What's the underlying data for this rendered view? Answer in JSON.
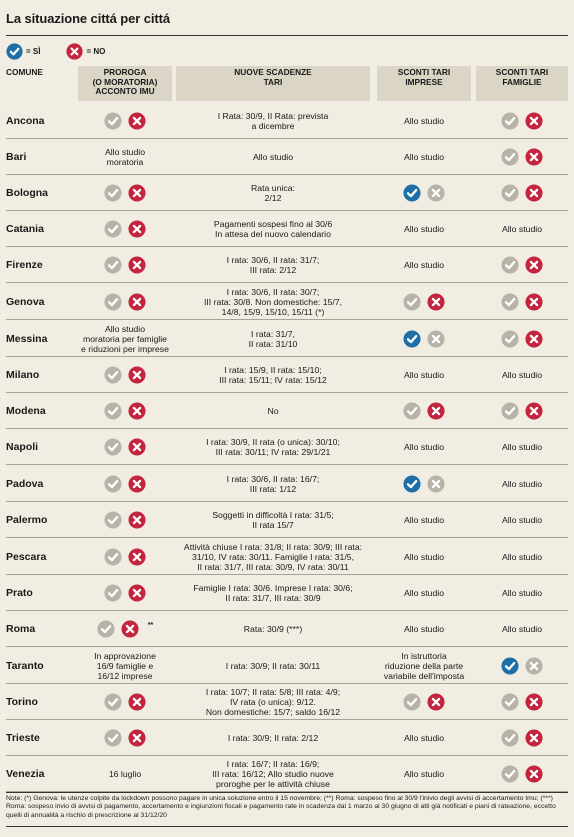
{
  "title": "La situazione cittá per cittá",
  "legend": [
    {
      "icon": "check-icon",
      "label": "= SÌ"
    },
    {
      "icon": "cross-icon",
      "label": "= NO"
    }
  ],
  "colors": {
    "check": "#1d6fa8",
    "cross": "#c3253e",
    "grey": "#b8b3a8",
    "header_bg": "#dbd5c6",
    "background": "#f2ede2"
  },
  "columns": [
    "COMUNE",
    "PROROGA\n(O MORATORIA)\nACCONTO IMU",
    "NUOVE SCADENZE\nTARI",
    "SCONTI TARI\nIMPRESE",
    "SCONTI TARI\nFAMIGLIE"
  ],
  "rows": [
    {
      "city": "Ancona",
      "imu": {
        "icons": [
          "grey-check-icon",
          "cross-icon"
        ]
      },
      "tari": "I Rata: 30/9, II Rata: prevista\na dicembre",
      "imprese": {
        "text": "Allo studio"
      },
      "famiglie": {
        "icons": [
          "grey-check-icon",
          "cross-icon"
        ]
      }
    },
    {
      "city": "Bari",
      "imu": {
        "text": "Allo studio\nmoratoria"
      },
      "tari": "Allo studio",
      "imprese": {
        "text": "Allo studio"
      },
      "famiglie": {
        "icons": [
          "grey-check-icon",
          "cross-icon"
        ]
      }
    },
    {
      "city": "Bologna",
      "imu": {
        "icons": [
          "grey-check-icon",
          "cross-icon"
        ]
      },
      "tari": "Rata unica:\n2/12",
      "imprese": {
        "icons": [
          "check-icon",
          "grey-cross-icon"
        ]
      },
      "famiglie": {
        "icons": [
          "grey-check-icon",
          "cross-icon"
        ]
      }
    },
    {
      "city": "Catania",
      "imu": {
        "icons": [
          "grey-check-icon",
          "cross-icon"
        ]
      },
      "tari": "Pagamenti sospesi fino al 30/6\nIn attesa del nuovo calendario",
      "imprese": {
        "text": "Allo studio"
      },
      "famiglie": {
        "text": "Allo studio"
      }
    },
    {
      "city": "Firenze",
      "imu": {
        "icons": [
          "grey-check-icon",
          "cross-icon"
        ]
      },
      "tari": "I rata: 30/6, II rata: 31/7;\nIII rata: 2/12",
      "imprese": {
        "text": "Allo studio"
      },
      "famiglie": {
        "icons": [
          "grey-check-icon",
          "cross-icon"
        ]
      }
    },
    {
      "city": "Genova",
      "imu": {
        "icons": [
          "grey-check-icon",
          "cross-icon"
        ]
      },
      "tari": "I rata: 30/6, II rata: 30/7;\nIII rata: 30/8. Non domestiche: 15/7,\n14/8, 15/9, 15/10, 15/11 (*)",
      "imprese": {
        "icons": [
          "grey-check-icon",
          "cross-icon"
        ]
      },
      "famiglie": {
        "icons": [
          "grey-check-icon",
          "cross-icon"
        ]
      }
    },
    {
      "city": "Messina",
      "imu": {
        "text": "Allo studio\nmoratoria per famiglie\ne riduzioni per imprese"
      },
      "tari": "I rata: 31/7,\nII rata: 31/10",
      "imprese": {
        "icons": [
          "check-icon",
          "grey-cross-icon"
        ]
      },
      "famiglie": {
        "icons": [
          "grey-check-icon",
          "cross-icon"
        ]
      }
    },
    {
      "city": "Milano",
      "imu": {
        "icons": [
          "grey-check-icon",
          "cross-icon"
        ]
      },
      "tari": "I rata: 15/9, II rata: 15/10;\nIII rata: 15/11; IV rata: 15/12",
      "imprese": {
        "text": "Allo studio"
      },
      "famiglie": {
        "text": "Allo studio"
      }
    },
    {
      "city": "Modena",
      "imu": {
        "icons": [
          "grey-check-icon",
          "cross-icon"
        ]
      },
      "tari": "No",
      "imprese": {
        "icons": [
          "grey-check-icon",
          "cross-icon"
        ]
      },
      "famiglie": {
        "icons": [
          "grey-check-icon",
          "cross-icon"
        ]
      }
    },
    {
      "city": "Napoli",
      "imu": {
        "icons": [
          "grey-check-icon",
          "cross-icon"
        ]
      },
      "tari": "I rata: 30/9, II rata (o unica): 30/10;\nIII rata: 30/11; IV rata: 29/1/21",
      "imprese": {
        "text": "Allo studio"
      },
      "famiglie": {
        "text": "Allo studio"
      }
    },
    {
      "city": "Padova",
      "imu": {
        "icons": [
          "grey-check-icon",
          "cross-icon"
        ]
      },
      "tari": "I rata: 30/6, II rata: 16/7;\nIII rata: 1/12",
      "imprese": {
        "icons": [
          "check-icon",
          "grey-cross-icon"
        ]
      },
      "famiglie": {
        "text": "Allo studio"
      }
    },
    {
      "city": "Palermo",
      "imu": {
        "icons": [
          "grey-check-icon",
          "cross-icon"
        ]
      },
      "tari": "Soggetti in difficoltà I rata: 31/5;\nII rata 15/7",
      "imprese": {
        "text": "Allo studio"
      },
      "famiglie": {
        "text": "Allo studio"
      }
    },
    {
      "city": "Pescara",
      "imu": {
        "icons": [
          "grey-check-icon",
          "cross-icon"
        ]
      },
      "tari": "Attività chiuse I rata: 31/8; II rata: 30/9; III rata:\n31/10, IV rata: 30/11. Famiglie I rata: 31/5,\nII rata: 31/7, III rata: 30/9, IV rata: 30/11",
      "imprese": {
        "text": "Allo studio"
      },
      "famiglie": {
        "text": "Allo studio"
      }
    },
    {
      "city": "Prato",
      "imu": {
        "icons": [
          "grey-check-icon",
          "cross-icon"
        ]
      },
      "tari": "Famiglie I rata: 30/6. Imprese I rata: 30/6;\nII rata: 31/7, III rata: 30/9",
      "imprese": {
        "text": "Allo studio"
      },
      "famiglie": {
        "text": "Allo studio"
      }
    },
    {
      "city": "Roma",
      "imu": {
        "icons": [
          "grey-check-icon",
          "cross-icon"
        ],
        "note": "**"
      },
      "tari": "Rata: 30/9 (***)",
      "imprese": {
        "text": "Allo studio"
      },
      "famiglie": {
        "text": "Allo studio"
      }
    },
    {
      "city": "Taranto",
      "imu": {
        "text": "In approvazione\n16/9 famiglie e\n16/12 imprese"
      },
      "tari": "I rata: 30/9; II rata: 30/11",
      "imprese": {
        "text": "In istruttoria\nriduzione della parte\nvariabile dell'imposta"
      },
      "famiglie": {
        "icons": [
          "check-icon",
          "grey-cross-icon"
        ]
      }
    },
    {
      "city": "Torino",
      "imu": {
        "icons": [
          "grey-check-icon",
          "cross-icon"
        ]
      },
      "tari": "I rata: 10/7; II rata: 5/8; III rata: 4/9;\nIV rata (o unica): 9/12.\nNon domestiche: 15/7; saldo 16/12",
      "imprese": {
        "icons": [
          "grey-check-icon",
          "cross-icon"
        ]
      },
      "famiglie": {
        "icons": [
          "grey-check-icon",
          "cross-icon"
        ]
      }
    },
    {
      "city": "Trieste",
      "imu": {
        "icons": [
          "grey-check-icon",
          "cross-icon"
        ]
      },
      "tari": "I rata: 30/9; II rata: 2/12",
      "imprese": {
        "text": "Allo studio"
      },
      "famiglie": {
        "icons": [
          "grey-check-icon",
          "cross-icon"
        ]
      }
    },
    {
      "city": "Venezia",
      "imu": {
        "text": "16 luglio"
      },
      "tari": "I rata: 16/7; II rata: 16/9;\nIII rata: 16/12; Allo studio nuove\nproroghe per le attività chiuse",
      "imprese": {
        "text": "Allo studio"
      },
      "famiglie": {
        "icons": [
          "grey-check-icon",
          "cross-icon"
        ]
      }
    }
  ],
  "note": "Note: (*) Genova: le utenze colpite da lockdown possono pagare in unica soluzione entro il 15 novembre; (**) Roma: sospeso fino al 30/9 l'inivio degli avvisi di accertamento Imu; (***) Roma: sospeso invio di avvisi di pagamento, accertamento e ingiunzioni fiscali e pagamento rate in scadenza dal 1 marzo al 30 giugno di atti già notificati e piani di rateazione, eccetto quelli di annualità a rischio di prescrizione al 31/12/20"
}
